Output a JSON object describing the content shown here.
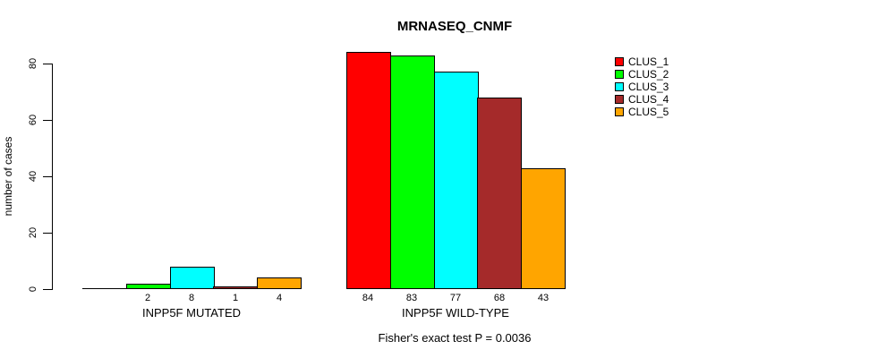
{
  "title": "MRNASEQ_CNMF",
  "y_axis": {
    "label": "number of cases",
    "ticks": [
      0,
      20,
      40,
      60,
      80
    ]
  },
  "legend": {
    "position": "right",
    "items": [
      {
        "label": "CLUS_1",
        "color": "#FF0000"
      },
      {
        "label": "CLUS_2",
        "color": "#00FF00"
      },
      {
        "label": "CLUS_3",
        "color": "#00FFFF"
      },
      {
        "label": "CLUS_4",
        "color": "#A52A2A"
      },
      {
        "label": "CLUS_5",
        "color": "#FFA500"
      }
    ]
  },
  "footer": {
    "fisher_text": "Fisher's exact test P = 0.0036"
  },
  "chart_data": {
    "type": "bar",
    "title": "MRNASEQ_CNMF",
    "xlabel": "",
    "ylabel": "number of cases",
    "ylim": [
      0,
      84
    ],
    "grid": false,
    "legend_position": "right",
    "categories": [
      "INPP5F MUTATED",
      "INPP5F WILD-TYPE"
    ],
    "series": [
      {
        "name": "CLUS_1",
        "color": "#FF0000",
        "values": [
          0,
          84
        ]
      },
      {
        "name": "CLUS_2",
        "color": "#00FF00",
        "values": [
          2,
          83
        ]
      },
      {
        "name": "CLUS_3",
        "color": "#00FFFF",
        "values": [
          8,
          77
        ]
      },
      {
        "name": "CLUS_4",
        "color": "#A52A2A",
        "values": [
          1,
          68
        ]
      },
      {
        "name": "CLUS_5",
        "color": "#FFA500",
        "values": [
          4,
          43
        ]
      }
    ],
    "bar_value_labels": [
      [
        "",
        "2",
        "8",
        "1",
        "4"
      ],
      [
        "84",
        "83",
        "77",
        "68",
        "43"
      ]
    ],
    "annotation": "Fisher's exact test P = 0.0036"
  }
}
